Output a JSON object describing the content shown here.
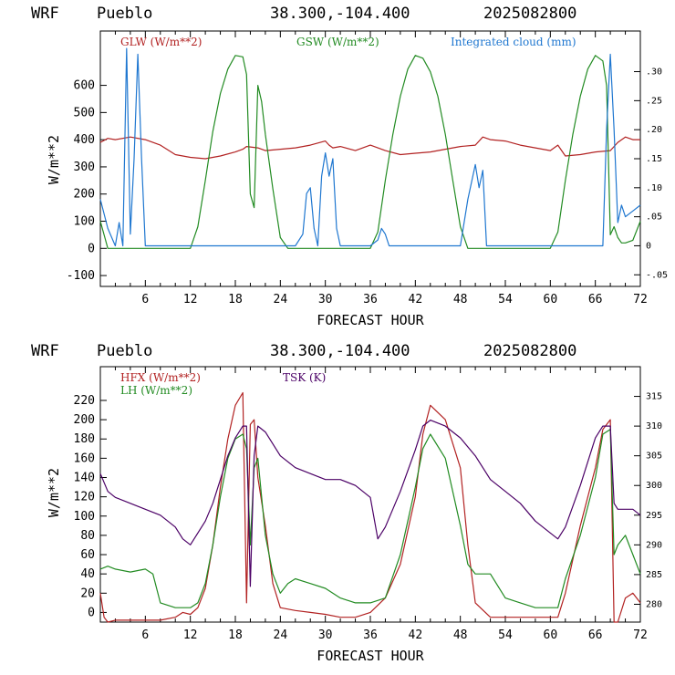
{
  "chart_data": [
    {
      "type": "line",
      "title": {
        "model": "WRF",
        "station": "Pueblo",
        "coords": "38.300,-104.400",
        "run": "2025082800"
      },
      "xlabel": "FORECAST HOUR",
      "ylabel": "W/m**2",
      "xlim": [
        0,
        72
      ],
      "ylim": [
        -140,
        800
      ],
      "y2lim": [
        -0.07,
        0.37
      ],
      "xticks": [
        "6",
        "12",
        "18",
        "24",
        "30",
        "36",
        "42",
        "48",
        "54",
        "60",
        "66",
        "72"
      ],
      "yticks": [
        "-100",
        "0",
        "100",
        "200",
        "300",
        "400",
        "500",
        "600"
      ],
      "y2ticks": [
        "-.05",
        "0",
        ".05",
        ".10",
        ".15",
        ".20",
        ".25",
        ".30"
      ],
      "series": [
        {
          "name": "GLW (W/m**2)",
          "color": "#b22222",
          "axis": "left",
          "x": [
            0,
            1,
            2,
            4,
            6,
            8,
            10,
            12,
            14,
            16,
            18,
            19,
            19.5,
            21,
            22,
            24,
            26,
            28,
            30,
            30.5,
            31,
            32,
            34,
            36,
            38,
            40,
            42,
            44,
            46,
            48,
            50,
            51,
            52,
            54,
            56,
            58,
            60,
            61,
            62,
            64,
            66,
            68,
            69,
            70,
            71,
            72
          ],
          "y": [
            390,
            405,
            400,
            410,
            400,
            380,
            345,
            335,
            330,
            340,
            355,
            365,
            375,
            370,
            360,
            365,
            370,
            380,
            395,
            380,
            370,
            375,
            360,
            380,
            360,
            345,
            350,
            355,
            365,
            375,
            380,
            410,
            400,
            395,
            380,
            370,
            360,
            380,
            340,
            345,
            355,
            360,
            390,
            410,
            400,
            400
          ]
        },
        {
          "name": "GSW (W/m**2)",
          "color": "#228b22",
          "axis": "left",
          "x": [
            0,
            0.5,
            1,
            2,
            3,
            4,
            5,
            6,
            7,
            8,
            9,
            10,
            11,
            12,
            13,
            14,
            15,
            16,
            17,
            18,
            19,
            19.5,
            20,
            20.5,
            21,
            21.5,
            22,
            23,
            24,
            25,
            26,
            27,
            28,
            29,
            30,
            31,
            32,
            33,
            34,
            35,
            36,
            37,
            38,
            39,
            40,
            41,
            42,
            43,
            44,
            45,
            46,
            47,
            48,
            49,
            50,
            51,
            52,
            53,
            54,
            55,
            56,
            57,
            58,
            59,
            60,
            61,
            62,
            63,
            64,
            65,
            66,
            67,
            67.5,
            68,
            68.5,
            69,
            69.5,
            70,
            71,
            72
          ],
          "y": [
            100,
            50,
            0,
            0,
            0,
            0,
            0,
            0,
            0,
            0,
            0,
            0,
            0,
            0,
            80,
            250,
            430,
            570,
            660,
            710,
            705,
            640,
            200,
            150,
            600,
            540,
            420,
            220,
            40,
            0,
            0,
            0,
            0,
            0,
            0,
            0,
            0,
            0,
            0,
            0,
            0,
            60,
            250,
            420,
            560,
            660,
            710,
            700,
            650,
            560,
            420,
            250,
            80,
            0,
            0,
            0,
            0,
            0,
            0,
            0,
            0,
            0,
            0,
            0,
            0,
            60,
            250,
            420,
            560,
            660,
            710,
            690,
            600,
            50,
            80,
            40,
            20,
            20,
            30,
            100
          ]
        },
        {
          "name": "Integrated cloud (mm)",
          "color": "#1f77d0",
          "axis": "right",
          "x": [
            0,
            1,
            2,
            2.5,
            3,
            3.5,
            4,
            4.5,
            5,
            5.5,
            6,
            6.5,
            7,
            8,
            12,
            20,
            25,
            26,
            27,
            27.5,
            28,
            28.5,
            29,
            29.5,
            30,
            30.5,
            31,
            31.5,
            32,
            33,
            36,
            37,
            37.5,
            38,
            38.5,
            39,
            45,
            48,
            49,
            50,
            50.5,
            51,
            51.5,
            52,
            53,
            60,
            64,
            66,
            67,
            67.5,
            68,
            68.5,
            69,
            69.5,
            70,
            71,
            72
          ],
          "y": [
            0.08,
            0.03,
            0,
            0.04,
            0,
            0.34,
            0.02,
            0.15,
            0.33,
            0.15,
            0,
            0,
            0,
            0,
            0,
            0,
            0,
            0,
            0.02,
            0.09,
            0.1,
            0.03,
            0,
            0.12,
            0.16,
            0.12,
            0.15,
            0.03,
            0,
            0,
            0,
            0.01,
            0.03,
            0.02,
            0,
            0,
            0,
            0,
            0.08,
            0.14,
            0.1,
            0.13,
            0,
            0,
            0,
            0,
            0,
            0,
            0,
            0.2,
            0.33,
            0.2,
            0.04,
            0.07,
            0.05,
            0.06,
            0.07
          ]
        }
      ]
    },
    {
      "type": "line",
      "title": {
        "model": "WRF",
        "station": "Pueblo",
        "coords": "38.300,-104.400",
        "run": "2025082800"
      },
      "xlabel": "FORECAST HOUR",
      "ylabel": "W/m**2",
      "xlim": [
        0,
        72
      ],
      "ylim": [
        -10,
        255
      ],
      "y2lim": [
        277,
        320
      ],
      "xticks": [
        "6",
        "12",
        "18",
        "24",
        "30",
        "36",
        "42",
        "48",
        "54",
        "60",
        "66",
        "72"
      ],
      "yticks": [
        "0",
        "20",
        "40",
        "60",
        "80",
        "100",
        "120",
        "140",
        "160",
        "180",
        "200",
        "220"
      ],
      "y2ticks": [
        "280",
        "285",
        "290",
        "295",
        "300",
        "305",
        "310",
        "315"
      ],
      "series": [
        {
          "name": "HFX (W/m**2)",
          "color": "#b22222",
          "axis": "left",
          "x": [
            0,
            0.5,
            1,
            2,
            4,
            6,
            8,
            10,
            11,
            12,
            13,
            14,
            15,
            16,
            17,
            18,
            19,
            19.5,
            20,
            20.5,
            21,
            22,
            23,
            24,
            26,
            28,
            30,
            32,
            34,
            36,
            38,
            40,
            42,
            43,
            44,
            46,
            48,
            49,
            50,
            52,
            54,
            56,
            58,
            60,
            61,
            62,
            64,
            66,
            67,
            68,
            68.5,
            69,
            70,
            71,
            72
          ],
          "y": [
            20,
            -5,
            -10,
            -8,
            -8,
            -8,
            -8,
            -5,
            0,
            -2,
            5,
            25,
            70,
            130,
            180,
            215,
            228,
            10,
            195,
            200,
            140,
            90,
            30,
            5,
            2,
            0,
            -2,
            -5,
            -5,
            0,
            15,
            50,
            120,
            185,
            215,
            200,
            150,
            70,
            10,
            -5,
            -5,
            -5,
            -5,
            -5,
            -5,
            20,
            90,
            150,
            190,
            200,
            -10,
            -10,
            15,
            20,
            10
          ]
        },
        {
          "name": "LH (W/m**2)",
          "color": "#228b22",
          "axis": "left",
          "x": [
            0,
            1,
            2,
            4,
            6,
            7,
            8,
            10,
            11,
            12,
            13,
            14,
            15,
            16,
            17,
            18,
            19,
            19.5,
            20,
            20.5,
            21,
            22,
            23,
            24,
            25,
            26,
            28,
            30,
            32,
            34,
            36,
            38,
            40,
            42,
            43,
            44,
            46,
            48,
            49,
            50,
            52,
            54,
            56,
            58,
            60,
            61,
            62,
            64,
            66,
            67,
            68,
            68.5,
            69,
            70,
            71,
            72
          ],
          "y": [
            45,
            48,
            45,
            42,
            45,
            40,
            10,
            5,
            5,
            5,
            10,
            30,
            70,
            120,
            160,
            180,
            185,
            170,
            70,
            150,
            160,
            80,
            40,
            20,
            30,
            35,
            30,
            25,
            15,
            10,
            10,
            15,
            60,
            130,
            170,
            185,
            160,
            90,
            50,
            40,
            40,
            15,
            10,
            5,
            5,
            5,
            35,
            80,
            140,
            185,
            190,
            60,
            70,
            80,
            60,
            40
          ]
        },
        {
          "name": "TSK (K)",
          "color": "#4b0066",
          "axis": "right",
          "x": [
            0,
            1,
            2,
            4,
            6,
            8,
            10,
            11,
            12,
            13,
            14,
            15,
            16,
            17,
            18,
            19,
            19.5,
            20,
            20.5,
            21,
            22,
            24,
            26,
            28,
            30,
            32,
            34,
            36,
            37,
            38,
            40,
            42,
            43,
            44,
            46,
            48,
            50,
            52,
            54,
            56,
            58,
            60,
            61,
            62,
            64,
            66,
            67,
            68,
            68.5,
            69,
            70,
            71,
            72
          ],
          "y": [
            302,
            299,
            298,
            297,
            296,
            295,
            293,
            291,
            290,
            292,
            294,
            297,
            301,
            305,
            308,
            310,
            310,
            283,
            305,
            310,
            309,
            305,
            303,
            302,
            301,
            301,
            300,
            298,
            291,
            293,
            299,
            306,
            310,
            311,
            310,
            308,
            305,
            301,
            299,
            297,
            294,
            292,
            291,
            293,
            300,
            308,
            310,
            310,
            297,
            296,
            296,
            296,
            295
          ]
        }
      ]
    }
  ]
}
